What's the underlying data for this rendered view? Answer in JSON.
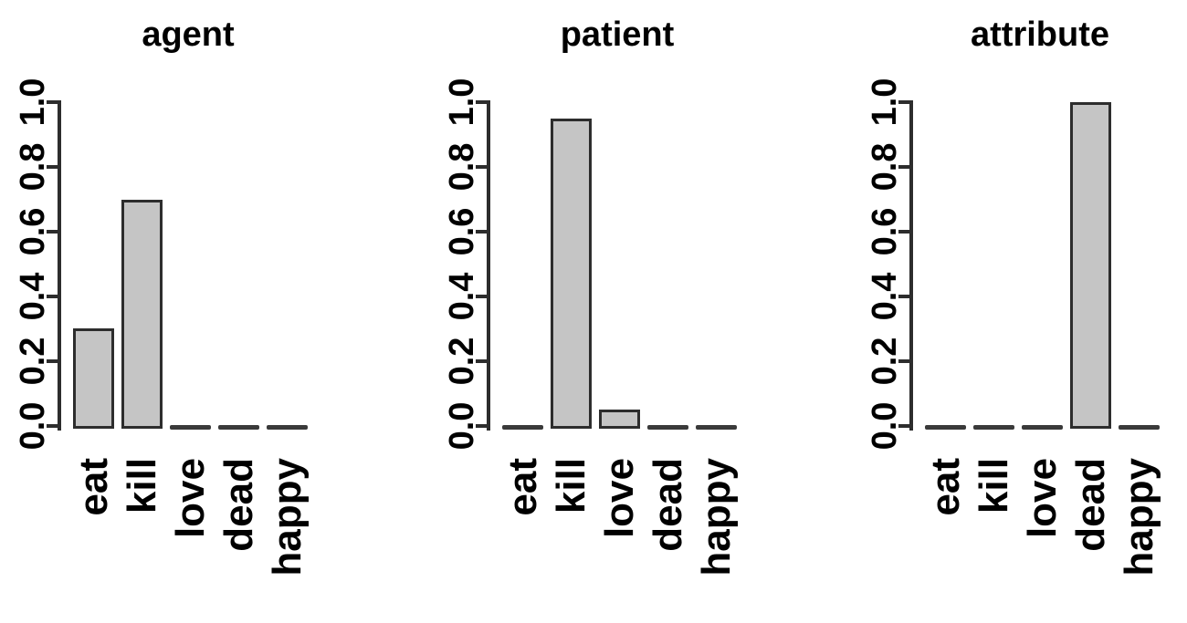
{
  "figure": {
    "background": "#ffffff"
  },
  "colors": {
    "bar_fill": "#c5c5c5",
    "bar_border": "#2d2d2d",
    "axis": "#2d2d2d",
    "zero_bar": "#3a3a3a",
    "text": "#000000"
  },
  "chart_data": [
    {
      "type": "bar",
      "title": "agent",
      "categories": [
        "eat",
        "kill",
        "love",
        "dead",
        "happy"
      ],
      "values": [
        0.3,
        0.7,
        0,
        0,
        0
      ],
      "xlabel": "",
      "ylabel": "",
      "ylim": [
        0,
        1
      ],
      "ytick_labels": [
        "0.0",
        "0.2",
        "0.4",
        "0.6",
        "0.8",
        "1.0"
      ],
      "grid": false,
      "legend": null
    },
    {
      "type": "bar",
      "title": "patient",
      "categories": [
        "eat",
        "kill",
        "love",
        "dead",
        "happy"
      ],
      "values": [
        0,
        0.95,
        0.05,
        0,
        0
      ],
      "xlabel": "",
      "ylabel": "",
      "ylim": [
        0,
        1
      ],
      "ytick_labels": [
        "0.0",
        "0.2",
        "0.4",
        "0.6",
        "0.8",
        "1.0"
      ],
      "grid": false,
      "legend": null
    },
    {
      "type": "bar",
      "title": "attribute",
      "categories": [
        "eat",
        "kill",
        "love",
        "dead",
        "happy"
      ],
      "values": [
        0,
        0,
        0,
        1.0,
        0
      ],
      "xlabel": "",
      "ylabel": "",
      "ylim": [
        0,
        1
      ],
      "ytick_labels": [
        "0.0",
        "0.2",
        "0.4",
        "0.6",
        "0.8",
        "1.0"
      ],
      "grid": false,
      "legend": null
    }
  ]
}
